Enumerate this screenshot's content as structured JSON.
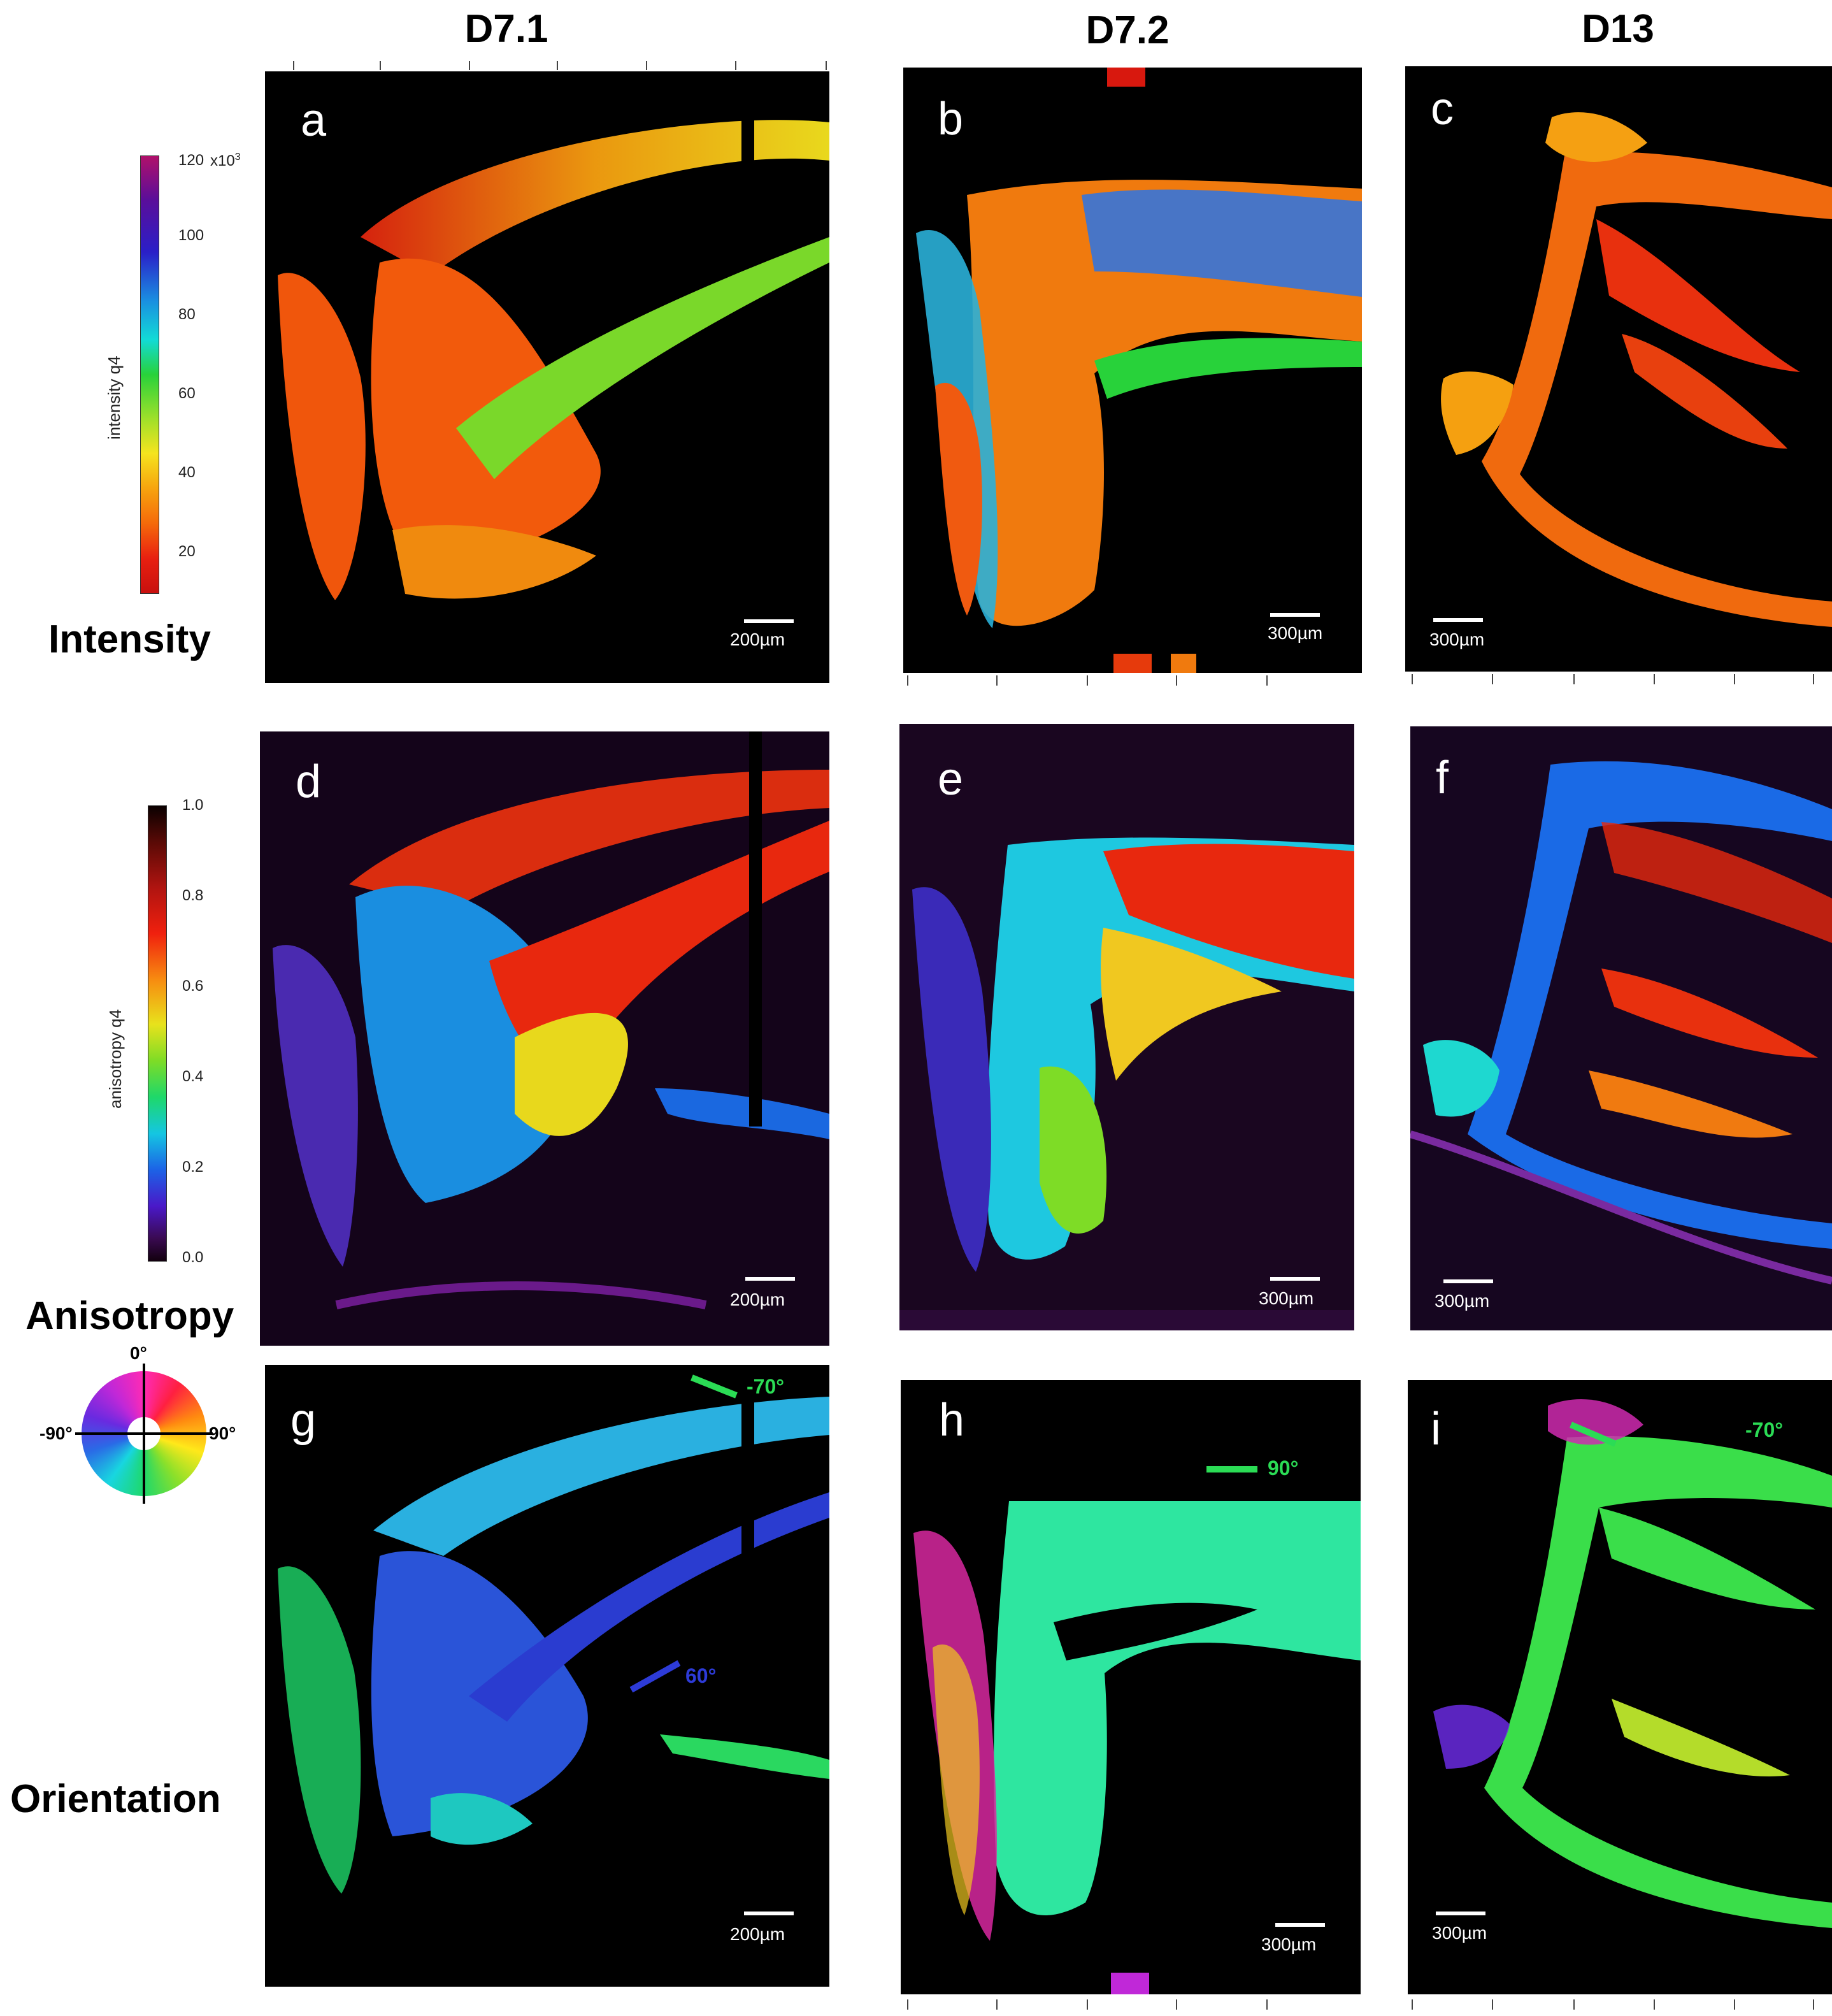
{
  "columns": [
    "D7.1",
    "D7.2",
    "D13"
  ],
  "rows": [
    "Intensity",
    "Anisotropy",
    "Orientation"
  ],
  "panels": {
    "a": "a",
    "b": "b",
    "c": "c",
    "d": "d",
    "e": "e",
    "f": "f",
    "g": "g",
    "h": "h",
    "i": "i"
  },
  "scale_bars": {
    "a": "200µm",
    "b": "300µm",
    "c": "300µm",
    "d": "200µm",
    "e": "300µm",
    "f": "300µm",
    "g": "200µm",
    "h": "300µm",
    "i": "300µm"
  },
  "intensity_colorbar": {
    "title": "intensity q4",
    "ticks": [
      "120",
      "100",
      "80",
      "60",
      "40",
      "20"
    ],
    "multiplier": "x10",
    "exponent": "3"
  },
  "anisotropy_colorbar": {
    "title": "anisotropy q4",
    "ticks": [
      "1.0",
      "0.8",
      "0.6",
      "0.4",
      "0.2",
      "0.0"
    ]
  },
  "orientation_wheel": {
    "top": "0°",
    "left": "-90°",
    "right": "90°"
  },
  "angle_markers": {
    "g_top": "-70°",
    "g_mid": "60°",
    "h_top": "90°",
    "i_top": "-70°"
  },
  "colors": {
    "background": "#000000",
    "marker_green": "#2bdc55",
    "marker_blue": "#2d3bd8"
  }
}
